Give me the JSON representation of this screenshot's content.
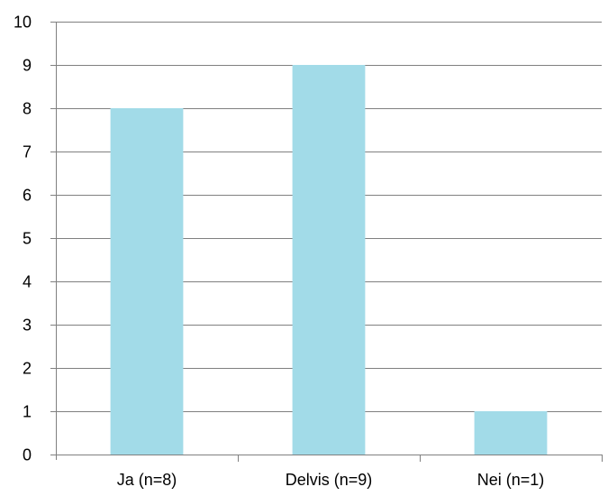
{
  "chart_data": {
    "type": "bar",
    "title": "",
    "xlabel": "",
    "ylabel": "",
    "categories": [
      "Ja (n=8)",
      "Delvis (n=9)",
      "Nei (n=1)"
    ],
    "values": [
      8,
      9,
      1
    ],
    "ylim": [
      0,
      10
    ],
    "yticks": [
      0,
      1,
      2,
      3,
      4,
      5,
      6,
      7,
      8,
      9,
      10
    ],
    "grid": true,
    "legend": "none",
    "colors": {
      "bar": "#a2dbe8",
      "grid": "#808080",
      "axis": "#808080",
      "text": "#000000"
    }
  }
}
